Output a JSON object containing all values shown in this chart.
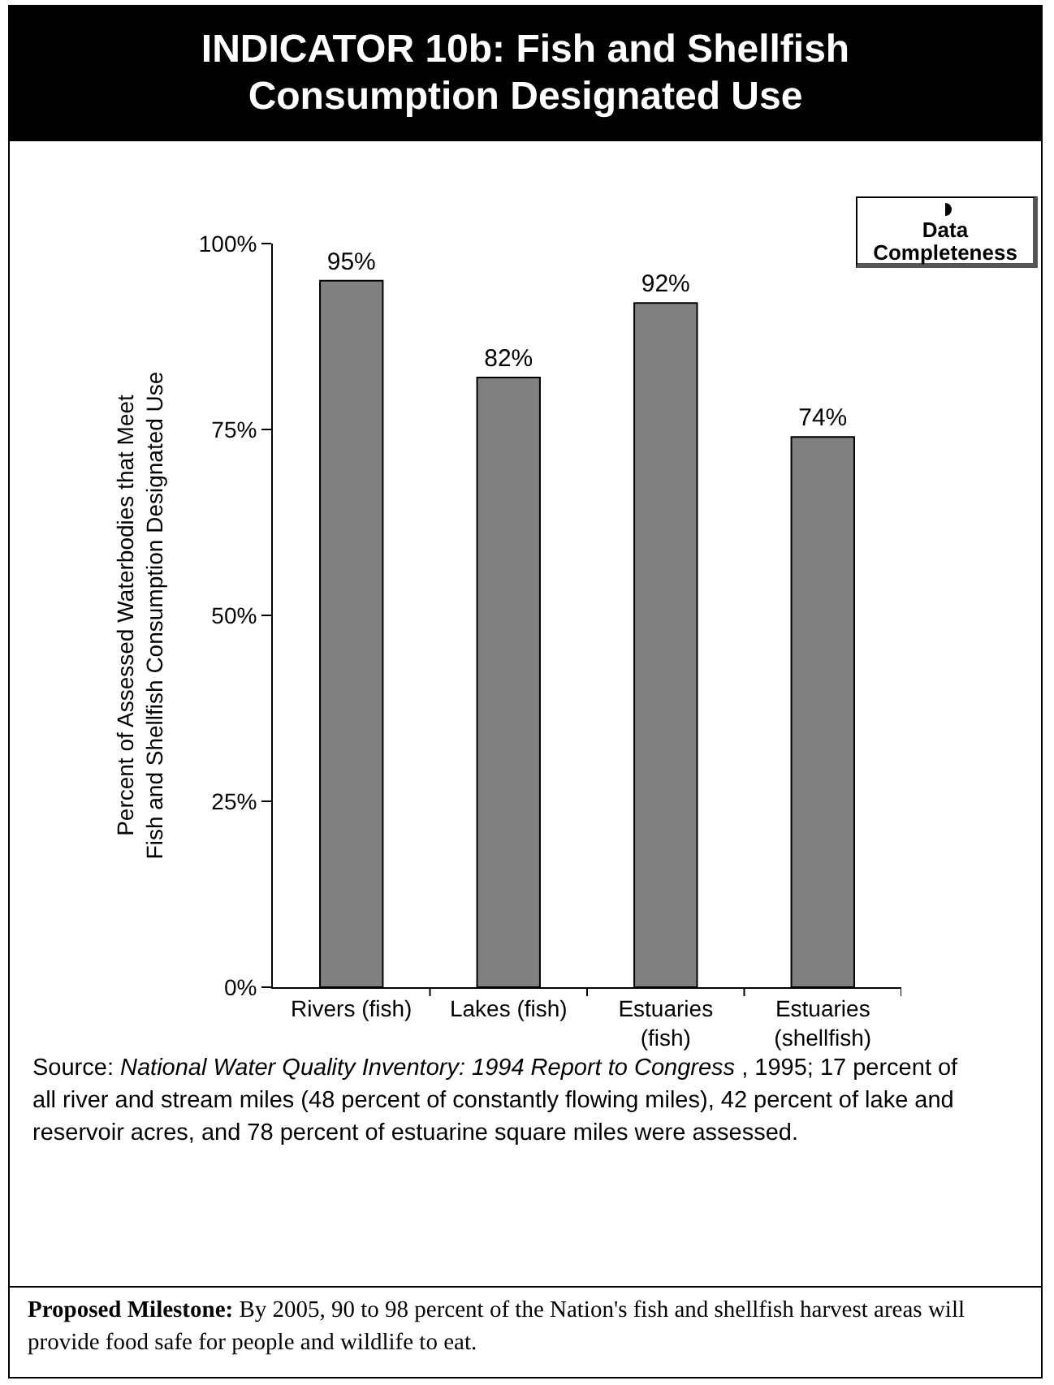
{
  "chart_data": {
    "type": "bar",
    "title": "INDICATOR 10b: Fish and Shellfish Consumption Designated Use",
    "ylabel": "Percent of Assessed Waterbodies that Meet Fish and Shellfish Consumption Designated Use",
    "categories": [
      "Rivers (fish)",
      "Lakes (fish)",
      "Estuaries (fish)",
      "Estuaries (shellfish)"
    ],
    "values": [
      95,
      82,
      92,
      74
    ],
    "color": "#808080",
    "value_labels": [
      "95%",
      "82%",
      "92%",
      "74%"
    ],
    "ylim": [
      0,
      100
    ],
    "yticks": [
      {
        "value": 0,
        "label": "0%"
      },
      {
        "value": 25,
        "label": "25%"
      },
      {
        "value": 50,
        "label": "50%"
      },
      {
        "value": 75,
        "label": "75%"
      },
      {
        "value": 100,
        "label": "100%"
      }
    ],
    "grid": false,
    "annotations": [
      "Data Completeness",
      "Source: ",
      "National Water Quality Inventory: 1994 Report to Congress",
      " , 1995; 17 percent of all river and stream miles (48 percent of constantly flowing miles), 42 percent of lake and reservoir acres, and 78 percent of estuarine square miles were assessed.",
      "Proposed Milestone:",
      " By 2005, 90 to 98 percent of the Nation's fish and shellfish harvest areas will provide food safe for people and wildlife to eat."
    ]
  }
}
